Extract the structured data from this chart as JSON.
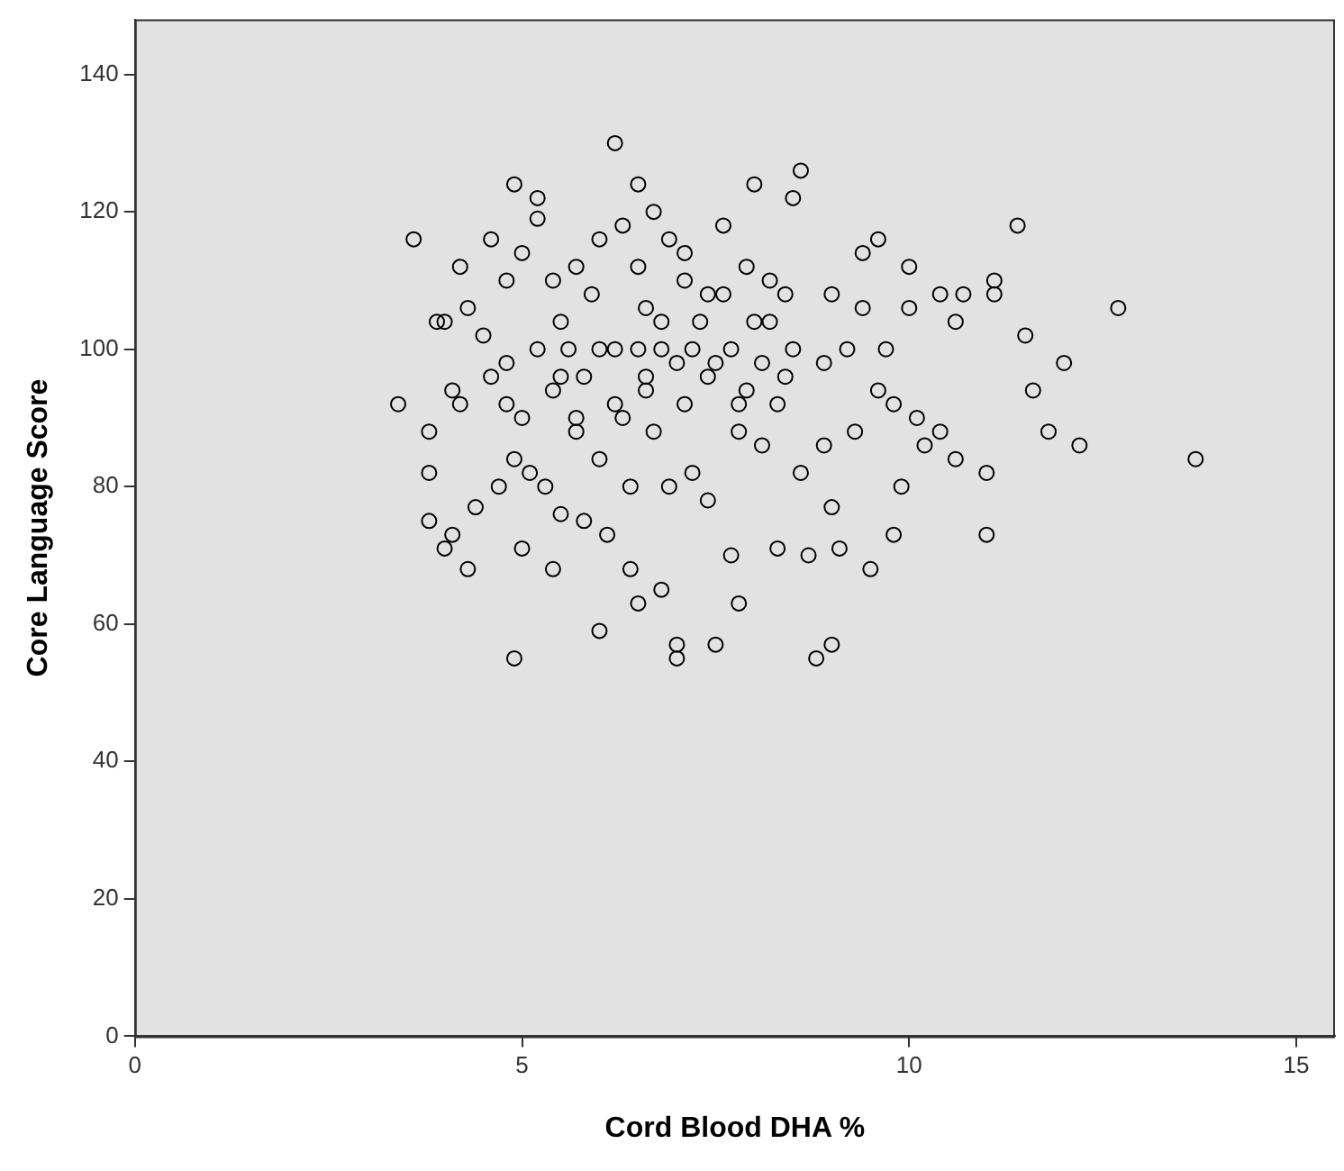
{
  "chart_data": {
    "type": "scatter",
    "xlabel": "Cord Blood DHA %",
    "ylabel": "Core Language Score",
    "xlim": [
      0,
      15.5
    ],
    "xticks": [
      0,
      5,
      10,
      15
    ],
    "ylim": [
      0,
      148
    ],
    "yticks": [
      0,
      20,
      40,
      60,
      80,
      100,
      120,
      140
    ],
    "grid": false,
    "legend": false,
    "marker": "circle",
    "series": [
      {
        "color": "#000000",
        "x": [
          3.4,
          3.6,
          3.8,
          3.8,
          3.8,
          3.9,
          4.0,
          4.0,
          4.1,
          4.1,
          4.2,
          4.2,
          4.3,
          4.3,
          4.4,
          4.5,
          4.6,
          4.6,
          4.7,
          4.8,
          4.8,
          4.8,
          4.9,
          4.9,
          4.9,
          5.0,
          5.0,
          5.0,
          5.1,
          5.2,
          5.2,
          5.2,
          5.3,
          5.4,
          5.4,
          5.4,
          5.5,
          5.5,
          5.6,
          5.7,
          5.7,
          5.8,
          5.8,
          5.9,
          6.0,
          6.0,
          6.0,
          6.1,
          6.2,
          6.2,
          6.3,
          6.3,
          6.4,
          6.4,
          6.5,
          6.5,
          6.5,
          6.5,
          6.6,
          6.6,
          6.7,
          6.7,
          6.8,
          6.8,
          6.9,
          6.9,
          7.0,
          7.0,
          7.0,
          7.1,
          7.1,
          7.1,
          7.2,
          7.3,
          7.4,
          7.4,
          7.5,
          7.6,
          7.6,
          7.7,
          7.7,
          7.8,
          7.8,
          7.9,
          7.9,
          8.0,
          8.0,
          8.1,
          8.1,
          8.2,
          8.3,
          8.3,
          8.4,
          8.5,
          8.5,
          8.6,
          8.6,
          8.7,
          8.8,
          8.9,
          8.9,
          9.0,
          9.0,
          9.0,
          9.1,
          9.2,
          9.3,
          9.4,
          9.4,
          9.5,
          9.6,
          9.6,
          9.7,
          9.8,
          9.8,
          9.9,
          10.0,
          10.0,
          10.1,
          10.2,
          10.4,
          10.4,
          10.6,
          10.6,
          10.7,
          11.0,
          11.0,
          11.1,
          11.1,
          11.4,
          11.5,
          11.6,
          11.8,
          12.0,
          12.2,
          12.7,
          13.7,
          5.5,
          6.0,
          6.2,
          6.8,
          7.2,
          7.5,
          8.2,
          8.4,
          5.7,
          6.6,
          7.4,
          7.8
        ],
        "values": [
          92,
          116,
          88,
          82,
          75,
          104,
          104,
          71,
          73,
          94,
          112,
          92,
          106,
          68,
          77,
          102,
          116,
          96,
          80,
          110,
          98,
          92,
          55,
          124,
          84,
          114,
          90,
          71,
          82,
          122,
          119,
          100,
          80,
          110,
          94,
          68,
          76,
          104,
          100,
          112,
          88,
          96,
          75,
          108,
          59,
          116,
          84,
          73,
          130,
          100,
          118,
          90,
          68,
          80,
          124,
          112,
          100,
          63,
          106,
          94,
          120,
          88,
          65,
          104,
          116,
          80,
          98,
          55,
          57,
          110,
          92,
          114,
          82,
          104,
          96,
          78,
          57,
          108,
          118,
          100,
          70,
          63,
          88,
          94,
          112,
          104,
          124,
          98,
          86,
          110,
          71,
          92,
          108,
          122,
          100,
          126,
          82,
          70,
          55,
          98,
          86,
          57,
          108,
          77,
          71,
          100,
          88,
          114,
          106,
          68,
          116,
          94,
          100,
          73,
          92,
          80,
          112,
          106,
          90,
          86,
          108,
          88,
          84,
          104,
          108,
          82,
          73,
          110,
          108,
          118,
          102,
          94,
          88,
          98,
          86,
          106,
          84,
          96,
          100,
          92,
          100,
          100,
          98,
          104,
          96,
          90,
          96,
          108,
          92
        ]
      }
    ]
  }
}
